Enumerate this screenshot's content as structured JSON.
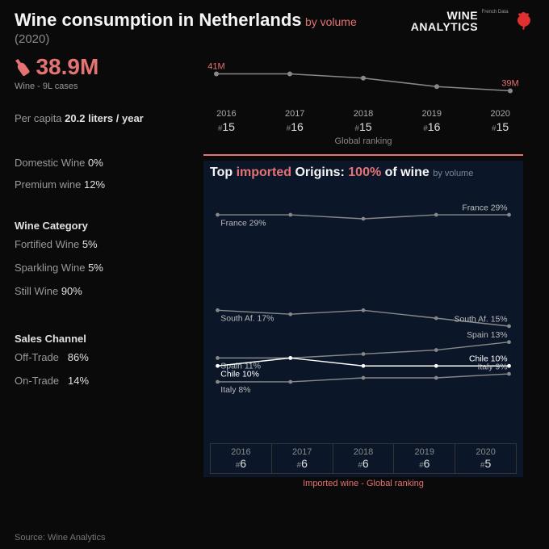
{
  "header": {
    "title": "Wine consumption in Netherlands",
    "suffix": "by volume",
    "year": "(2020)",
    "logo_top": "WINE",
    "logo_bottom": "ANALYTICS",
    "logo_sub": "French Data"
  },
  "colors": {
    "accent": "#e57373",
    "bg": "#0a0a0a",
    "panel_bg": "#0b1729",
    "text_dim": "#999999",
    "text": "#e0e0e0",
    "line_gray": "#888888",
    "line_white": "#ffffff"
  },
  "hero": {
    "value": "38.9M",
    "unit": "Wine - 9L cases"
  },
  "per_capita": {
    "label": "Per capita",
    "value": "20.2 liters / year"
  },
  "left_stats": [
    {
      "label": "Domestic Wine",
      "value": "0%"
    },
    {
      "label": "Premium wine",
      "value": "12%"
    }
  ],
  "category": {
    "heading": "Wine Category",
    "items": [
      {
        "label": "Fortified Wine",
        "value": "5%"
      },
      {
        "label": "Sparkling Wine",
        "value": "5%"
      },
      {
        "label": "Still Wine",
        "value": "90%"
      }
    ]
  },
  "channel": {
    "heading": "Sales Channel",
    "items": [
      {
        "label": "Off-Trade",
        "value": "86%"
      },
      {
        "label": "On-Trade",
        "value": "14%"
      }
    ]
  },
  "trend_chart": {
    "type": "line",
    "start_label": "41M",
    "end_label": "39M",
    "line_color": "#888888",
    "marker_color": "#888888",
    "label_color": "#e57373",
    "values": [
      41,
      41,
      40.5,
      39.5,
      39
    ],
    "ylim": [
      38,
      42
    ],
    "years": [
      "2016",
      "2017",
      "2018",
      "2019",
      "2020"
    ],
    "ranks": [
      "15",
      "16",
      "15",
      "16",
      "15"
    ],
    "caption": "Global ranking"
  },
  "origins_chart": {
    "title_prefix": "Top ",
    "title_accent": "imported",
    "title_mid": " Origins: ",
    "title_pct": "100%",
    "title_post": " of wine",
    "title_suffix": "by volume",
    "type": "line",
    "years": [
      "2016",
      "2017",
      "2018",
      "2019",
      "2020"
    ],
    "ylim": [
      5,
      32
    ],
    "series": [
      {
        "name": "France",
        "color": "#888888",
        "start_label": "France 29%",
        "end_label": "France 29%",
        "values": [
          29,
          29,
          28.5,
          29,
          29
        ]
      },
      {
        "name": "South Af.",
        "color": "#888888",
        "start_label": "South Af. 17%",
        "end_label": "South Af. 15%",
        "values": [
          17,
          16.5,
          17,
          16,
          15
        ]
      },
      {
        "name": "Spain",
        "color": "#888888",
        "start_label": "Spain 11%",
        "end_label": "Spain 13%",
        "values": [
          11,
          11,
          11.5,
          12,
          13
        ]
      },
      {
        "name": "Chile",
        "color": "#ffffff",
        "start_label": "Chile 10%",
        "end_label": "Chile 10%",
        "values": [
          10,
          11,
          10,
          10,
          10
        ]
      },
      {
        "name": "Italy",
        "color": "#888888",
        "start_label": "Italy 8%",
        "end_label": "Italy 9%",
        "values": [
          8,
          8,
          8.5,
          8.5,
          9
        ]
      }
    ],
    "bottom_ranks": [
      "6",
      "6",
      "6",
      "6",
      "5"
    ],
    "bottom_caption": "Imported wine - Global ranking"
  },
  "source": "Source: Wine Analytics"
}
